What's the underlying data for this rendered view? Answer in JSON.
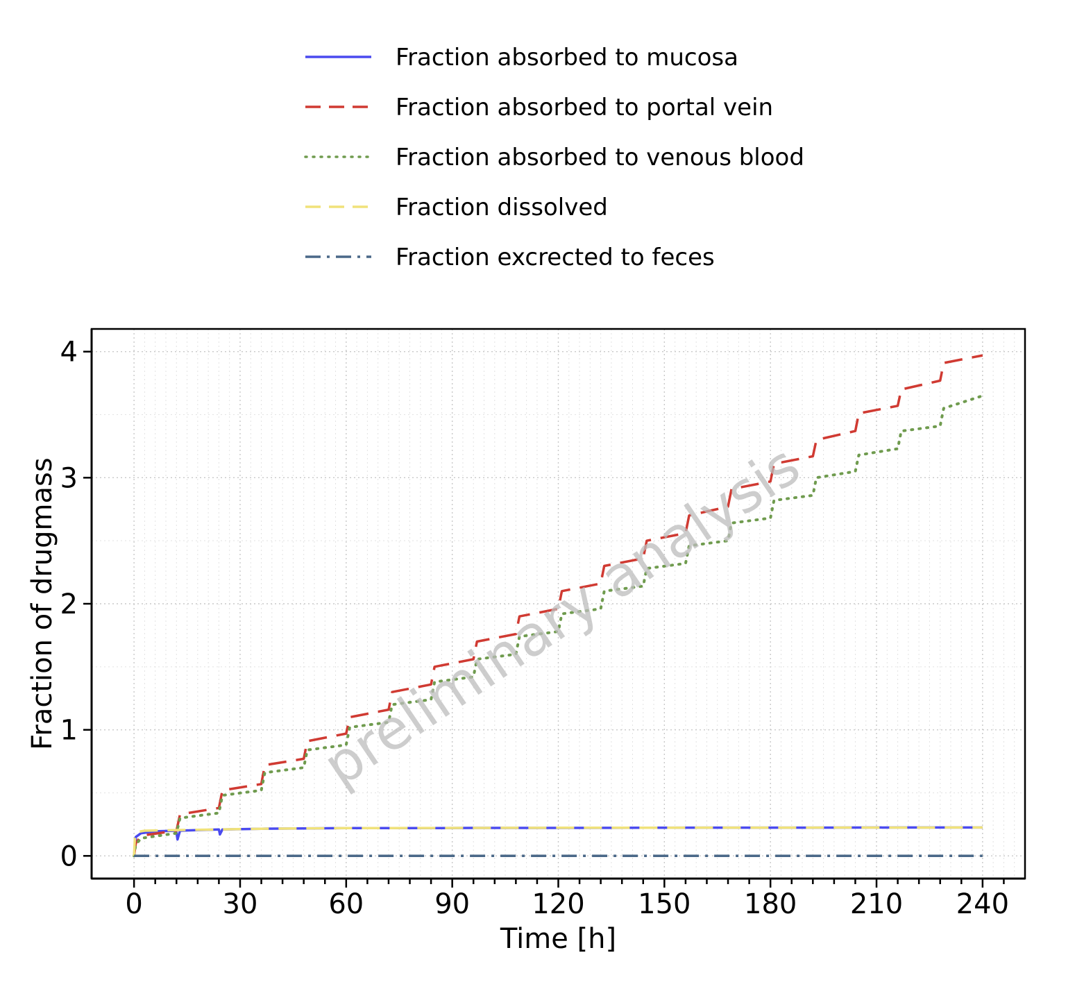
{
  "chart_data": {
    "type": "line",
    "xlabel": "Time [h]",
    "ylabel": "Fraction of drugmass",
    "watermark": "preliminary analysis",
    "xlim": [
      -12,
      252
    ],
    "ylim": [
      -0.18,
      4.18
    ],
    "xticks": [
      0,
      30,
      60,
      90,
      120,
      150,
      180,
      210,
      240
    ],
    "yticks": [
      0,
      1,
      2,
      3,
      4
    ],
    "grid": true,
    "legend_position": "top",
    "dose_interval_h": 12,
    "series": [
      {
        "name": "Fraction absorbed to mucosa",
        "color": "#4a4aef",
        "style": "solid",
        "x": [
          0,
          0.5,
          2,
          6,
          11.9,
          12.3,
          13,
          18,
          24,
          24.3,
          25,
          36,
          48,
          60,
          72,
          84,
          96,
          120,
          144,
          168,
          192,
          216,
          240
        ],
        "y": [
          0,
          0.15,
          0.18,
          0.195,
          0.2,
          0.13,
          0.2,
          0.205,
          0.21,
          0.17,
          0.21,
          0.215,
          0.218,
          0.22,
          0.22,
          0.22,
          0.222,
          0.222,
          0.223,
          0.224,
          0.224,
          0.225,
          0.225
        ]
      },
      {
        "name": "Fraction absorbed to portal vein",
        "color": "#d03a32",
        "style": "dashed",
        "x": [
          0,
          0.5,
          2,
          12,
          13,
          24,
          25,
          36,
          37,
          48,
          49,
          60,
          61,
          72,
          73,
          84,
          85,
          96,
          97,
          108,
          109,
          120,
          121,
          132,
          133,
          144,
          145,
          156,
          157,
          168,
          169,
          180,
          181,
          192,
          193,
          204,
          205,
          216,
          217,
          228,
          229,
          240
        ],
        "y": [
          0,
          0.1,
          0.16,
          0.2,
          0.33,
          0.38,
          0.52,
          0.57,
          0.72,
          0.77,
          0.91,
          0.97,
          1.1,
          1.16,
          1.3,
          1.36,
          1.5,
          1.56,
          1.7,
          1.76,
          1.9,
          1.96,
          2.1,
          2.16,
          2.3,
          2.36,
          2.5,
          2.56,
          2.7,
          2.77,
          2.91,
          2.97,
          3.11,
          3.17,
          3.3,
          3.37,
          3.51,
          3.57,
          3.7,
          3.77,
          3.91,
          3.97
        ]
      },
      {
        "name": "Fraction absorbed to venous blood",
        "color": "#6f9b4e",
        "style": "dotted",
        "x": [
          0,
          0.5,
          2,
          12,
          13,
          24,
          25,
          36,
          37,
          48,
          49,
          60,
          61,
          72,
          73,
          84,
          85,
          96,
          97,
          108,
          109,
          120,
          121,
          132,
          133,
          144,
          145,
          156,
          157,
          168,
          169,
          180,
          181,
          192,
          193,
          204,
          205,
          216,
          217,
          228,
          229,
          240
        ],
        "y": [
          0,
          0.09,
          0.14,
          0.18,
          0.3,
          0.34,
          0.48,
          0.52,
          0.66,
          0.7,
          0.84,
          0.88,
          1.02,
          1.06,
          1.2,
          1.24,
          1.38,
          1.42,
          1.56,
          1.6,
          1.74,
          1.78,
          1.92,
          1.96,
          2.1,
          2.14,
          2.28,
          2.32,
          2.46,
          2.5,
          2.64,
          2.68,
          2.82,
          2.86,
          3.0,
          3.05,
          3.18,
          3.23,
          3.37,
          3.41,
          3.55,
          3.65
        ]
      },
      {
        "name": "Fraction dissolved",
        "color": "#f0e27a",
        "style": "dashed",
        "x": [
          0,
          0.3,
          1,
          3,
          12,
          24,
          36,
          48,
          60,
          120,
          180,
          240
        ],
        "y": [
          0,
          0.18,
          0.19,
          0.2,
          0.205,
          0.21,
          0.215,
          0.218,
          0.22,
          0.223,
          0.224,
          0.225
        ]
      },
      {
        "name": "Fraction excrected to feces",
        "color": "#4a6888",
        "style": "dashdot",
        "x": [
          0,
          240
        ],
        "y": [
          0,
          0
        ]
      }
    ]
  }
}
